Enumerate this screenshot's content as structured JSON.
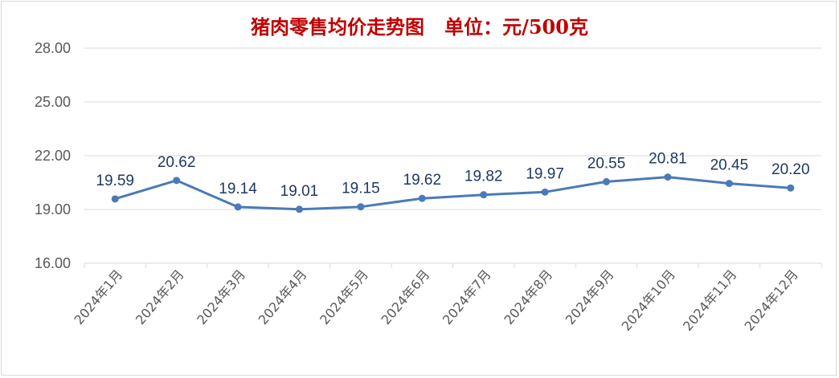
{
  "chart_data": {
    "type": "line",
    "title": "猪肉零售均价走势图   单位：元/500克",
    "xlabel": "",
    "ylabel": "",
    "categories": [
      "2024年1月",
      "2024年2月",
      "2024年3月",
      "2024年4月",
      "2024年5月",
      "2024年6月",
      "2024年7月",
      "2024年8月",
      "2024年9月",
      "2024年10月",
      "2024年11月",
      "2024年12月"
    ],
    "series": [
      {
        "values": [
          19.59,
          20.62,
          19.14,
          19.01,
          19.15,
          19.62,
          19.82,
          19.97,
          20.55,
          20.81,
          20.45,
          20.2
        ]
      }
    ],
    "data_labels": [
      "19.59",
      "20.62",
      "19.14",
      "19.01",
      "19.15",
      "19.62",
      "19.82",
      "19.97",
      "20.55",
      "20.81",
      "20.45",
      "20.20"
    ],
    "y_ticks": [
      "16.00",
      "19.00",
      "22.00",
      "25.00",
      "28.00"
    ],
    "ylim": [
      16,
      28
    ],
    "grid": true,
    "legend": "none",
    "colors": {
      "line": "#4a7ab8",
      "title": "#c00000",
      "grid": "#d9d9d9",
      "label": "#1f3864"
    }
  }
}
